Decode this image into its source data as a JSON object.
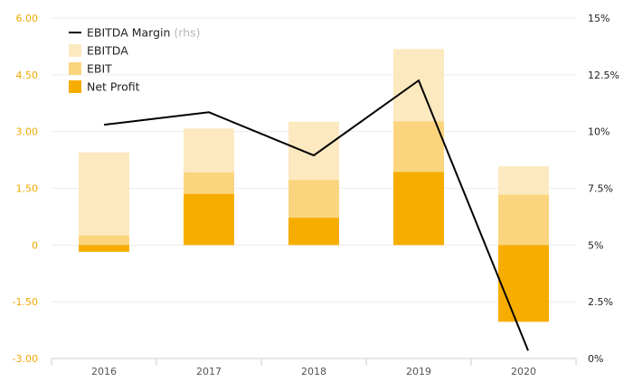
{
  "chart_data": {
    "type": "bar",
    "categories": [
      "2016",
      "2017",
      "2018",
      "2019",
      "2020"
    ],
    "series": [
      {
        "name": "EBITDA",
        "type": "bar",
        "axis": "left",
        "color": "#fde9bf",
        "values": [
          2.45,
          3.08,
          3.26,
          5.18,
          2.08
        ]
      },
      {
        "name": "EBIT",
        "type": "bar",
        "axis": "left",
        "color": "#fbd57e",
        "values": [
          0.25,
          1.92,
          1.72,
          3.27,
          1.33
        ]
      },
      {
        "name": "Net Profit",
        "type": "bar",
        "axis": "left",
        "color": "#f7ad00",
        "values": [
          -0.18,
          1.35,
          0.72,
          1.93,
          -2.03
        ]
      },
      {
        "name": "EBITDA Margin",
        "type": "line",
        "axis": "right",
        "color": "#000000",
        "values": [
          10.3,
          10.85,
          8.95,
          12.25,
          0.35
        ]
      }
    ],
    "y_left": {
      "range": [
        -3.0,
        6.0
      ],
      "ticks": [
        "-3.00",
        "-1.50",
        "0",
        "1.50",
        "3.00",
        "4.50",
        "6.00"
      ],
      "tick_values": [
        -3,
        -1.5,
        0,
        1.5,
        3,
        4.5,
        6
      ]
    },
    "y_right": {
      "range": [
        0,
        15
      ],
      "ticks": [
        "0%",
        "2.5%",
        "5%",
        "7.5%",
        "10%",
        "12.5%",
        "15%"
      ],
      "tick_values": [
        0,
        2.5,
        5,
        7.5,
        10,
        12.5,
        15
      ]
    },
    "legend": {
      "position": "top-left",
      "items": [
        {
          "label": "EBITDA Margin",
          "note": "(rhs)",
          "marker": "line",
          "color": "#000000"
        },
        {
          "label": "EBITDA",
          "marker": "square",
          "color": "#fde9bf"
        },
        {
          "label": "EBIT",
          "marker": "square",
          "color": "#fbd57e"
        },
        {
          "label": "Net Profit",
          "marker": "square",
          "color": "#f7ad00"
        }
      ]
    },
    "grid": true,
    "colors": {
      "left_axis_text": "#f0a800",
      "right_axis_text": "#222222",
      "x_axis_text": "#555555",
      "grid": "#ececec"
    }
  }
}
